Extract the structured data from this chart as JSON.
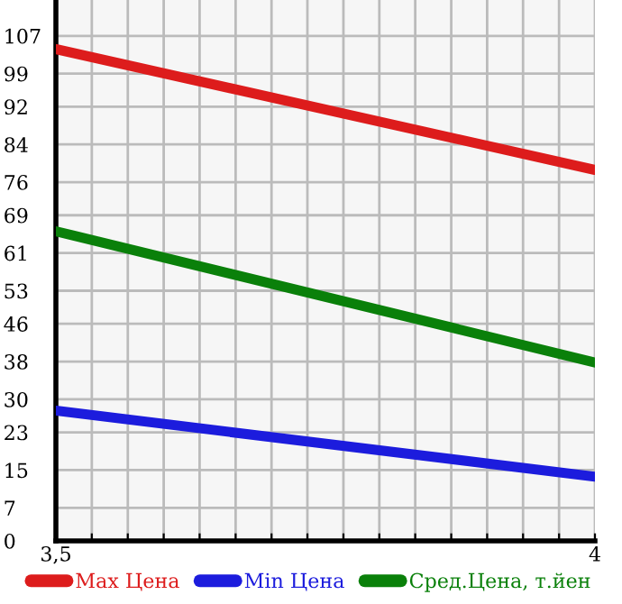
{
  "chart_data": {
    "type": "line",
    "x": [
      3.5,
      4
    ],
    "series": [
      {
        "name": "Max Цена",
        "color": "#dd1c1c",
        "values": [
          104.2,
          78.6
        ]
      },
      {
        "name": "Min Цена",
        "color": "#1c1cdd",
        "values": [
          27.6,
          13.6
        ]
      },
      {
        "name": "Сред.Цена, т.йен",
        "color": "#0a800a",
        "values": [
          65.6,
          37.8
        ]
      }
    ],
    "xlim": [
      3.5,
      4
    ],
    "xticks": [
      {
        "value": 3.5,
        "label": "3,5"
      },
      {
        "value": 3.5333,
        "label": null
      },
      {
        "value": 3.5667,
        "label": null
      },
      {
        "value": 3.6,
        "label": null
      },
      {
        "value": 3.6333,
        "label": null
      },
      {
        "value": 3.6667,
        "label": null
      },
      {
        "value": 3.7,
        "label": null
      },
      {
        "value": 3.7333,
        "label": null
      },
      {
        "value": 3.7667,
        "label": null
      },
      {
        "value": 3.8,
        "label": null
      },
      {
        "value": 3.8333,
        "label": null
      },
      {
        "value": 3.8667,
        "label": null
      },
      {
        "value": 3.9,
        "label": null
      },
      {
        "value": 3.9333,
        "label": null
      },
      {
        "value": 3.9667,
        "label": null
      },
      4
    ],
    "ylim": [
      0,
      114.6
    ],
    "yticks": [
      0,
      7,
      15,
      23,
      30,
      38,
      46,
      53,
      61,
      69,
      76,
      84,
      92,
      99,
      107
    ],
    "grid": true,
    "legend": "bottom",
    "marker": "none",
    "line_style": "solid"
  }
}
